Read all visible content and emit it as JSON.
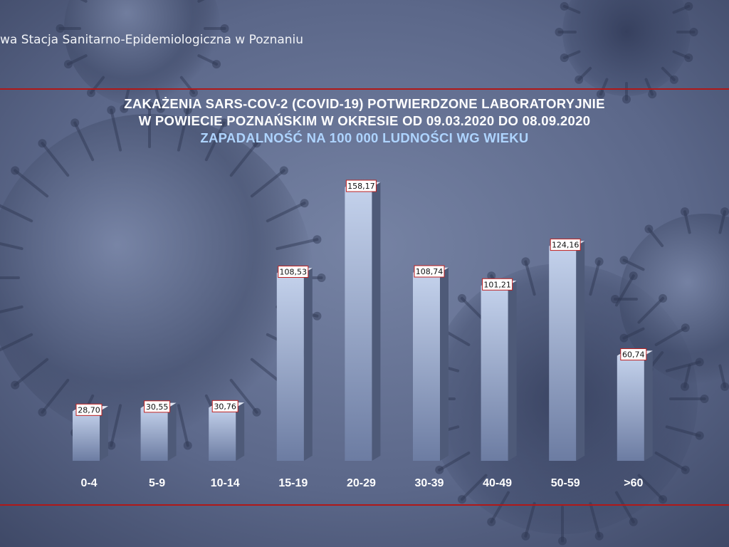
{
  "header": {
    "institution": "wa Stacja Sanitarno-Epidemiologiczna w Poznaniu"
  },
  "title": {
    "line1": "ZAKAŻENIA SARS-COV-2 (COVID-19) POTWIERDZONE LABORATORYJNIE",
    "line2": "W POWIECIE POZNAŃSKIM W OKRESIE OD 09.03.2020 DO 08.09.2020",
    "subtitle": "ZAPADALNOŚĆ NA 100 000 LUDNOŚCI WG WIEKU"
  },
  "colors": {
    "accent_line": "#b01818",
    "bar_front_light": "#c4d2ec",
    "bar_front_dark": "#6c7ca2",
    "bar_side": "#4e5a78",
    "bar_top": "#e2e8f4",
    "label_border": "#c02020",
    "subtitle": "#aed4ff"
  },
  "chart_data": {
    "type": "bar",
    "style": "3d-column",
    "grid": false,
    "title": "ZAKAŻENIA SARS-COV-2 (COVID-19) POTWIERDZONE LABORATORYJNIE W POWIECIE POZNAŃSKIM W OKRESIE OD 09.03.2020 DO 08.09.2020",
    "subtitle": "ZAPADALNOŚĆ NA 100 000 LUDNOŚCI WG WIEKU",
    "categories": [
      "0-4",
      "5-9",
      "10-14",
      "15-19",
      "20-29",
      "30-39",
      "40-49",
      "50-59",
      ">60"
    ],
    "values": [
      28.7,
      30.55,
      30.76,
      108.53,
      158.17,
      108.74,
      101.21,
      124.16,
      60.74
    ],
    "value_labels": [
      "28,70",
      "30,55",
      "30,76",
      "108,53",
      "158,17",
      "108,74",
      "101,21",
      "124,16",
      "60,74"
    ],
    "xlabel": "",
    "ylabel": "",
    "ylim": [
      0,
      158.17
    ]
  }
}
